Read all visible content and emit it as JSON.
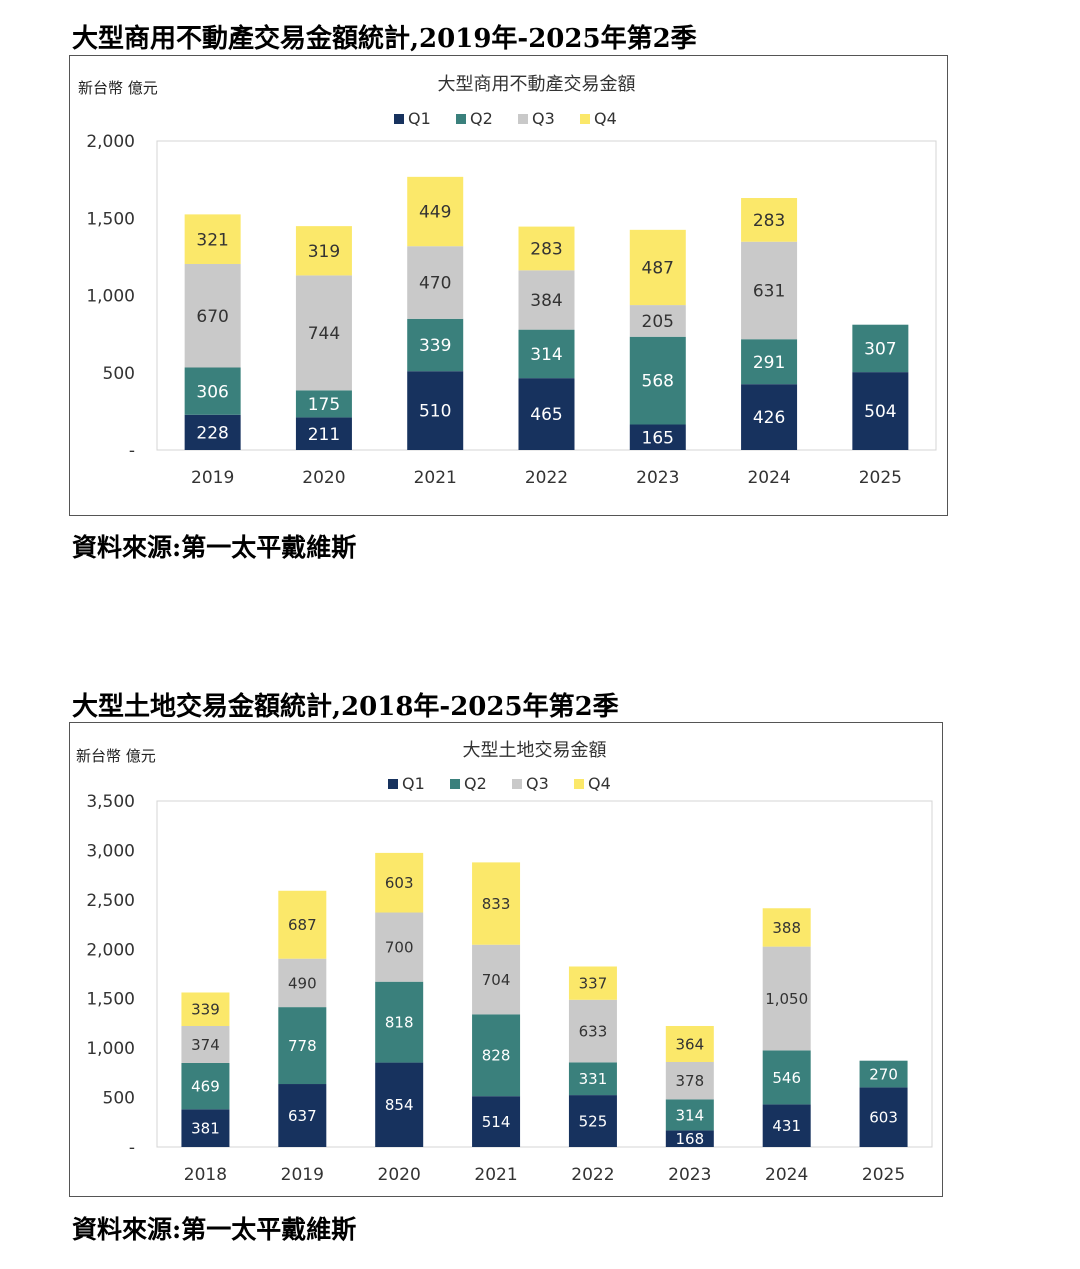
{
  "charts": [
    {
      "section_title": "大型商用不動產交易金額統計,2019年-2025年第2季",
      "source": "資料來源:第一太平戴維斯"
    },
    {
      "section_title": "大型土地交易金額統計,2018年-2025年第2季",
      "source": "資料來源:第一太平戴維斯"
    }
  ],
  "colors": {
    "Q1": "#17325e",
    "Q2": "#3a807c",
    "Q3": "#c9c9c9",
    "Q4": "#fbe86a"
  },
  "chart_data": [
    {
      "type": "bar",
      "stacked": true,
      "title": "大型商用不動產交易金額",
      "unit_label": "新台幣 億元",
      "categories": [
        "2019",
        "2020",
        "2021",
        "2022",
        "2023",
        "2024",
        "2025"
      ],
      "series": [
        {
          "name": "Q1",
          "values": [
            228,
            211,
            510,
            465,
            165,
            426,
            504
          ]
        },
        {
          "name": "Q2",
          "values": [
            306,
            175,
            339,
            314,
            568,
            291,
            307
          ]
        },
        {
          "name": "Q3",
          "values": [
            670,
            744,
            470,
            384,
            205,
            631,
            null
          ]
        },
        {
          "name": "Q4",
          "values": [
            321,
            319,
            449,
            283,
            487,
            283,
            null
          ]
        }
      ],
      "ylim": [
        0,
        2000
      ],
      "yticks": [
        0,
        500,
        1000,
        1500,
        2000
      ],
      "ytick_labels": [
        "-",
        "500",
        "1,000",
        "1,500",
        "2,000"
      ],
      "legend": "top",
      "grid": false
    },
    {
      "type": "bar",
      "stacked": true,
      "title": "大型土地交易金額",
      "unit_label": "新台幣 億元",
      "categories": [
        "2018",
        "2019",
        "2020",
        "2021",
        "2022",
        "2023",
        "2024",
        "2025"
      ],
      "series": [
        {
          "name": "Q1",
          "values": [
            381,
            637,
            854,
            514,
            525,
            168,
            431,
            603
          ]
        },
        {
          "name": "Q2",
          "values": [
            469,
            778,
            818,
            828,
            331,
            314,
            546,
            270
          ]
        },
        {
          "name": "Q3",
          "values": [
            374,
            490,
            700,
            704,
            633,
            378,
            1050,
            null
          ]
        },
        {
          "name": "Q4",
          "values": [
            339,
            687,
            603,
            833,
            337,
            364,
            388,
            null
          ]
        }
      ],
      "ylim": [
        0,
        3500
      ],
      "yticks": [
        0,
        500,
        1000,
        1500,
        2000,
        2500,
        3000,
        3500
      ],
      "ytick_labels": [
        "-",
        "500",
        "1,000",
        "1,500",
        "2,000",
        "2,500",
        "3,000",
        "3,500"
      ],
      "legend": "top",
      "grid": false
    }
  ]
}
